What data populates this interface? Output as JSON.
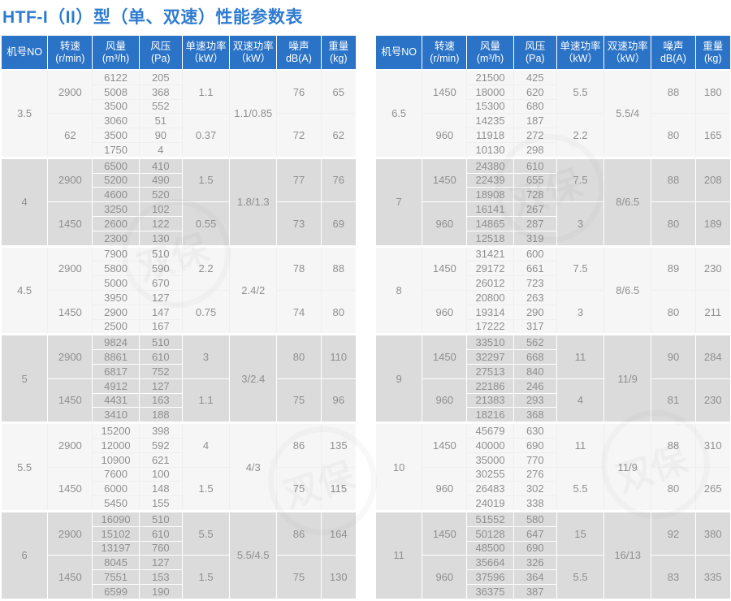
{
  "title": "HTF-I（II）型（单、双速）性能参数表",
  "colors": {
    "title_text": "#2e7bd0",
    "header_bg": "#2b73c6",
    "header_text": "#ffffff",
    "section_light_bg": "#f6f6f6",
    "section_gray_bg": "#dbdbdb",
    "cell_text": "#8f8f8f"
  },
  "watermark": {
    "text": "双保",
    "reg": "®"
  },
  "columns": [
    {
      "l1": "机号NO",
      "l2": ""
    },
    {
      "l1": "转速",
      "l2": "(r/min)"
    },
    {
      "l1": "风量",
      "l2": "(m³/h)"
    },
    {
      "l1": "风压",
      "l2": "(Pa)"
    },
    {
      "l1": "单速功率",
      "l2": "（kW）"
    },
    {
      "l1": "双速功率",
      "l2": "（kW）"
    },
    {
      "l1": "噪声",
      "l2": "dB(A)"
    },
    {
      "l1": "重量",
      "l2": "(kg)"
    }
  ],
  "tables": [
    {
      "sections": [
        {
          "no": "3.5",
          "dual": "1.1/0.85",
          "groups": [
            {
              "speed": "2900",
              "rows": [
                [
                  "6122",
                  "205"
                ],
                [
                  "5008",
                  "368"
                ],
                [
                  "3500",
                  "552"
                ]
              ],
              "power": "1.1",
              "noise": "76",
              "weight": "65"
            },
            {
              "speed": "62",
              "rows": [
                [
                  "3060",
                  "51"
                ],
                [
                  "3500",
                  "90"
                ],
                [
                  "1750",
                  "4"
                ]
              ],
              "power": "0.37",
              "noise": "72",
              "weight": "62"
            }
          ]
        },
        {
          "no": "4",
          "dual": "1.8/1.3",
          "groups": [
            {
              "speed": "2900",
              "rows": [
                [
                  "6500",
                  "410"
                ],
                [
                  "5200",
                  "490"
                ],
                [
                  "4600",
                  "520"
                ]
              ],
              "power": "1.5",
              "noise": "77",
              "weight": "76"
            },
            {
              "speed": "1450",
              "rows": [
                [
                  "3250",
                  "102"
                ],
                [
                  "2600",
                  "122"
                ],
                [
                  "2300",
                  "130"
                ]
              ],
              "power": "0.55",
              "noise": "73",
              "weight": "69"
            }
          ]
        },
        {
          "no": "4.5",
          "dual": "2.4/2",
          "groups": [
            {
              "speed": "2900",
              "rows": [
                [
                  "7900",
                  "510"
                ],
                [
                  "5800",
                  "590"
                ],
                [
                  "5000",
                  "670"
                ]
              ],
              "power": "2.2",
              "noise": "78",
              "weight": "88"
            },
            {
              "speed": "1450",
              "rows": [
                [
                  "3950",
                  "127"
                ],
                [
                  "2900",
                  "147"
                ],
                [
                  "2500",
                  "167"
                ]
              ],
              "power": "0.75",
              "noise": "74",
              "weight": "80"
            }
          ]
        },
        {
          "no": "5",
          "dual": "3/2.4",
          "groups": [
            {
              "speed": "2900",
              "rows": [
                [
                  "9824",
                  "510"
                ],
                [
                  "8861",
                  "610"
                ],
                [
                  "6817",
                  "752"
                ]
              ],
              "power": "3",
              "noise": "80",
              "weight": "110"
            },
            {
              "speed": "1450",
              "rows": [
                [
                  "4912",
                  "127"
                ],
                [
                  "4431",
                  "163"
                ],
                [
                  "3410",
                  "188"
                ]
              ],
              "power": "1.1",
              "noise": "75",
              "weight": "96"
            }
          ]
        },
        {
          "no": "5.5",
          "dual": "4/3",
          "groups": [
            {
              "speed": "2900",
              "rows": [
                [
                  "15200",
                  "398"
                ],
                [
                  "12000",
                  "592"
                ],
                [
                  "10900",
                  "621"
                ]
              ],
              "power": "4",
              "noise": "86",
              "weight": "135"
            },
            {
              "speed": "1450",
              "rows": [
                [
                  "7600",
                  "100"
                ],
                [
                  "6000",
                  "148"
                ],
                [
                  "5450",
                  "155"
                ]
              ],
              "power": "1.5",
              "noise": "75",
              "weight": "115"
            }
          ]
        },
        {
          "no": "6",
          "dual": "5.5/4.5",
          "groups": [
            {
              "speed": "2900",
              "rows": [
                [
                  "16090",
                  "510"
                ],
                [
                  "15102",
                  "610"
                ],
                [
                  "13197",
                  "760"
                ]
              ],
              "power": "5.5",
              "noise": "86",
              "weight": "164"
            },
            {
              "speed": "1450",
              "rows": [
                [
                  "8045",
                  "127"
                ],
                [
                  "7551",
                  "153"
                ],
                [
                  "6599",
                  "190"
                ]
              ],
              "power": "1.5",
              "noise": "75",
              "weight": "130"
            }
          ]
        }
      ]
    },
    {
      "sections": [
        {
          "no": "6.5",
          "dual": "5.5/4",
          "groups": [
            {
              "speed": "1450",
              "rows": [
                [
                  "21500",
                  "425"
                ],
                [
                  "18000",
                  "620"
                ],
                [
                  "15300",
                  "680"
                ]
              ],
              "power": "5.5",
              "noise": "88",
              "weight": "180"
            },
            {
              "speed": "960",
              "rows": [
                [
                  "14235",
                  "187"
                ],
                [
                  "11918",
                  "272"
                ],
                [
                  "10130",
                  "298"
                ]
              ],
              "power": "2.2",
              "noise": "80",
              "weight": "165"
            }
          ]
        },
        {
          "no": "7",
          "dual": "8/6.5",
          "groups": [
            {
              "speed": "1450",
              "rows": [
                [
                  "24380",
                  "610"
                ],
                [
                  "22439",
                  "655"
                ],
                [
                  "18908",
                  "728"
                ]
              ],
              "power": "7.5",
              "noise": "88",
              "weight": "208"
            },
            {
              "speed": "960",
              "rows": [
                [
                  "16141",
                  "267"
                ],
                [
                  "14865",
                  "287"
                ],
                [
                  "12518",
                  "319"
                ]
              ],
              "power": "3",
              "noise": "80",
              "weight": "189"
            }
          ]
        },
        {
          "no": "8",
          "dual": "8/6.5",
          "groups": [
            {
              "speed": "1450",
              "rows": [
                [
                  "31421",
                  "600"
                ],
                [
                  "29172",
                  "661"
                ],
                [
                  "26012",
                  "723"
                ]
              ],
              "power": "7.5",
              "noise": "89",
              "weight": "230"
            },
            {
              "speed": "960",
              "rows": [
                [
                  "20800",
                  "263"
                ],
                [
                  "19314",
                  "290"
                ],
                [
                  "17222",
                  "317"
                ]
              ],
              "power": "3",
              "noise": "80",
              "weight": "211"
            }
          ]
        },
        {
          "no": "9",
          "dual": "11/9",
          "groups": [
            {
              "speed": "1450",
              "rows": [
                [
                  "33510",
                  "562"
                ],
                [
                  "32297",
                  "668"
                ],
                [
                  "27513",
                  "840"
                ]
              ],
              "power": "11",
              "noise": "90",
              "weight": "284"
            },
            {
              "speed": "960",
              "rows": [
                [
                  "22186",
                  "246"
                ],
                [
                  "21383",
                  "293"
                ],
                [
                  "18216",
                  "368"
                ]
              ],
              "power": "4",
              "noise": "81",
              "weight": "230"
            }
          ]
        },
        {
          "no": "10",
          "dual": "11/9",
          "groups": [
            {
              "speed": "1450",
              "rows": [
                [
                  "45679",
                  "630"
                ],
                [
                  "40000",
                  "690"
                ],
                [
                  "35000",
                  "770"
                ]
              ],
              "power": "11",
              "noise": "88",
              "weight": "310"
            },
            {
              "speed": "960",
              "rows": [
                [
                  "30255",
                  "276"
                ],
                [
                  "26483",
                  "302"
                ],
                [
                  "24019",
                  "338"
                ]
              ],
              "power": "5.5",
              "noise": "80",
              "weight": "265"
            }
          ]
        },
        {
          "no": "11",
          "dual": "16/13",
          "groups": [
            {
              "speed": "1450",
              "rows": [
                [
                  "51552",
                  "580"
                ],
                [
                  "50128",
                  "647"
                ],
                [
                  "48500",
                  "690"
                ]
              ],
              "power": "15",
              "noise": "92",
              "weight": "380"
            },
            {
              "speed": "960",
              "rows": [
                [
                  "35664",
                  "326"
                ],
                [
                  "37596",
                  "364"
                ],
                [
                  "36375",
                  "387"
                ]
              ],
              "power": "5.5",
              "noise": "83",
              "weight": "335"
            }
          ]
        }
      ]
    }
  ]
}
